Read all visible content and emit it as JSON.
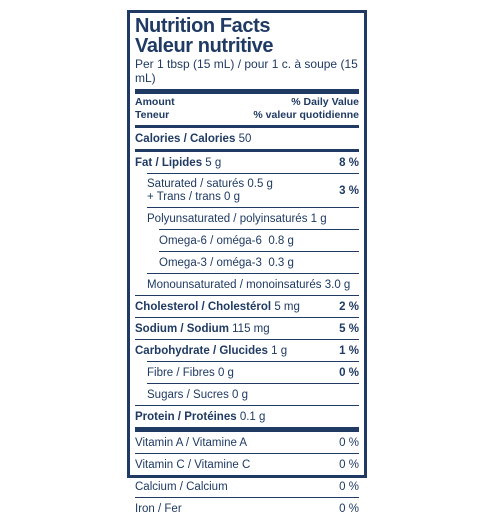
{
  "label": {
    "title_en": "Nutrition Facts",
    "title_fr": "Valeur nutritive",
    "serving": "Per 1 tbsp (15 mL) / pour 1 c. à soupe (15 mL)",
    "amount_en": "Amount",
    "amount_fr": "Teneur",
    "dv_en": "% Daily Value",
    "dv_fr": "% valeur quotidienne",
    "calories": {
      "label": "Calories / Calories",
      "value": "50"
    },
    "fat": {
      "label": "Fat / Lipides",
      "value": "5 g",
      "dv": "8 %"
    },
    "saturated": {
      "label": "Saturated / saturés",
      "value": "0.5 g",
      "dv": "3 %"
    },
    "trans": {
      "label": "+ Trans / trans",
      "value": "0 g"
    },
    "poly": {
      "label": "Polyunsaturated / polyinsaturés",
      "value": "1 g"
    },
    "omega6": {
      "label": "Omega-6 / oméga-6",
      "value": "0.8 g"
    },
    "omega3": {
      "label": "Omega-3 / oméga-3",
      "value": "0.3 g"
    },
    "mono": {
      "label": "Monounsaturated / monoinsaturés",
      "value": "3.0 g"
    },
    "cholesterol": {
      "label": "Cholesterol / Cholestérol",
      "value": "5 mg",
      "dv": "2 %"
    },
    "sodium": {
      "label": "Sodium / Sodium",
      "value": "115 mg",
      "dv": "5 %"
    },
    "carb": {
      "label": "Carbohydrate / Glucides",
      "value": "1 g",
      "dv": "1 %"
    },
    "fibre": {
      "label": "Fibre / Fibres",
      "value": "0 g",
      "dv": "0 %"
    },
    "sugars": {
      "label": "Sugars / Sucres",
      "value": "0 g"
    },
    "protein": {
      "label": "Protein / Protéines",
      "value": "0.1 g"
    },
    "vitA": {
      "label": "Vitamin A / Vitamine A",
      "dv": "0 %"
    },
    "vitC": {
      "label": "Vitamin C / Vitamine C",
      "dv": "0 %"
    },
    "calcium": {
      "label": "Calcium / Calcium",
      "dv": "0 %"
    },
    "iron": {
      "label": "Iron / Fer",
      "dv": "0 %"
    }
  },
  "colors": {
    "ink": "#1f3a63",
    "background": "#ffffff"
  }
}
